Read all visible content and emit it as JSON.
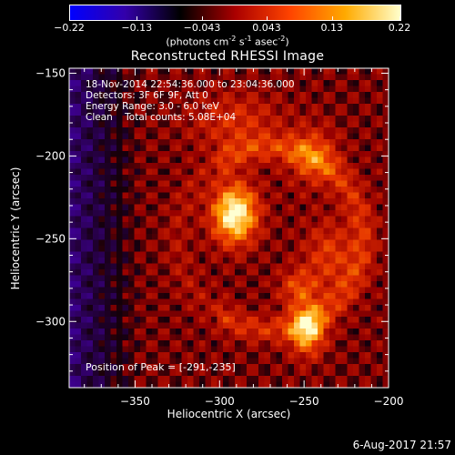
{
  "colorbar": {
    "ticks": [
      "-0.22",
      "-0.13",
      "-0.043",
      "0.043",
      "0.13",
      "0.22"
    ],
    "tick_values": [
      -0.22,
      -0.13,
      -0.043,
      0.043,
      0.13,
      0.22
    ],
    "units_prefix": "(photons cm",
    "units_sup1": "-2",
    "units_mid1": " s",
    "units_sup2": "-1",
    "units_mid2": " asec",
    "units_sup3": "-2",
    "units_suffix": ")",
    "colors": [
      "#0000ff",
      "#3300aa",
      "#000000",
      "#aa0000",
      "#ff4400",
      "#ffaa00",
      "#ffffcc"
    ]
  },
  "title": "Reconstructed RHESSI Image",
  "info": {
    "line1": "18-Nov-2014 22:54:36.000 to 23:04:36.000",
    "line2": "Detectors: 3F 6F 9F, Att 0",
    "line3": "Energy Range: 3.0 - 6.0 keV",
    "line4": "Clean    Total counts: 5.08E+04"
  },
  "peak_label": "Position of Peak = [-291,-235]",
  "footer_date": "6-Aug-2017 21:57",
  "chart_data": {
    "type": "heatmap",
    "title": "Reconstructed RHESSI Image",
    "xlabel": "Heliocentric X (arcsec)",
    "ylabel": "Heliocentric Y (arcsec)",
    "xlim": [
      -389,
      -200
    ],
    "ylim": [
      -340,
      -147
    ],
    "x_ticks": [
      -350,
      -300,
      -250,
      -200
    ],
    "x_tick_labels": [
      "−350",
      "−300",
      "−250",
      "−200"
    ],
    "y_ticks": [
      -150,
      -200,
      -250,
      -300
    ],
    "y_tick_labels": [
      "−150",
      "−200",
      "−250",
      "−300"
    ],
    "color_range": [
      -0.22,
      0.22
    ],
    "peak_position": [
      -291,
      -235
    ],
    "sources": [
      {
        "x": -291,
        "y": -235,
        "sx": 9,
        "sy": 12,
        "amp": 0.22
      },
      {
        "x": -248,
        "y": -305,
        "sx": 7,
        "sy": 10,
        "amp": 0.17
      },
      {
        "x": -253,
        "y": -280,
        "sx": 8,
        "sy": 8,
        "amp": 0.08
      },
      {
        "x": -235,
        "y": -260,
        "sx": 10,
        "sy": 14,
        "amp": 0.07
      },
      {
        "x": -245,
        "y": -200,
        "sx": 10,
        "sy": 12,
        "amp": 0.08
      },
      {
        "x": -290,
        "y": -180,
        "sx": 18,
        "sy": 12,
        "amp": 0.06
      }
    ]
  }
}
